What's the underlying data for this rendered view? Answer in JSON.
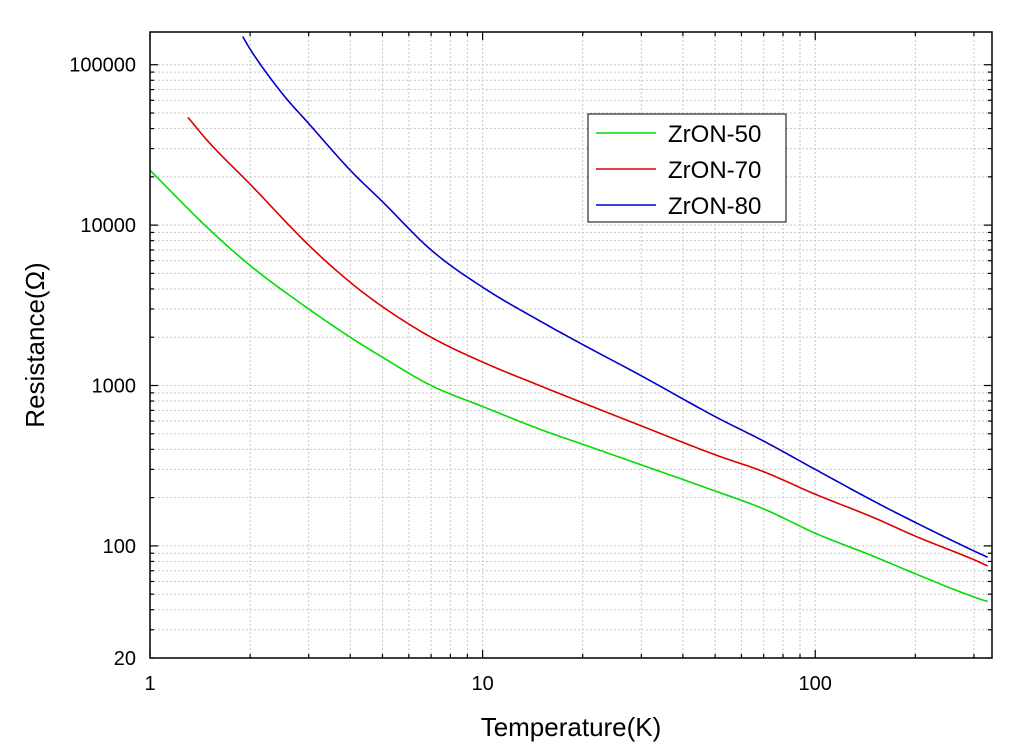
{
  "chart_data": {
    "type": "line",
    "title": "",
    "xlabel": "Temperature(K)",
    "ylabel": "Resistance(Ω)",
    "xscale": "log",
    "yscale": "log",
    "xlim": [
      1,
      340
    ],
    "ylim": [
      20,
      160000
    ],
    "xticks": [
      {
        "value": 1,
        "label": "1"
      },
      {
        "value": 10,
        "label": "10"
      },
      {
        "value": 100,
        "label": "100"
      }
    ],
    "yticks": [
      {
        "value": 20,
        "label": "20"
      },
      {
        "value": 100,
        "label": "100"
      },
      {
        "value": 1000,
        "label": "1000"
      },
      {
        "value": 10000,
        "label": "10000"
      },
      {
        "value": 100000,
        "label": "100000"
      }
    ],
    "grid": true,
    "legend_position": "top-right",
    "series": [
      {
        "name": "ZrON-50",
        "color": "#00dd00",
        "x": [
          1,
          1.5,
          2,
          3,
          4,
          5,
          7,
          10,
          15,
          20,
          30,
          50,
          70,
          100,
          150,
          200,
          300,
          330
        ],
        "y": [
          22000,
          9500,
          5600,
          3000,
          2000,
          1500,
          1000,
          740,
          530,
          430,
          320,
          220,
          170,
          120,
          86,
          67,
          48,
          45
        ]
      },
      {
        "name": "ZrON-70",
        "color": "#dd0000",
        "x": [
          1.3,
          1.5,
          2,
          3,
          4,
          5,
          7,
          10,
          15,
          20,
          30,
          50,
          70,
          100,
          150,
          200,
          300,
          330
        ],
        "y": [
          47000,
          33000,
          18000,
          7500,
          4400,
          3100,
          2000,
          1400,
          990,
          780,
          560,
          370,
          290,
          210,
          150,
          115,
          82,
          75
        ]
      },
      {
        "name": "ZrON-80",
        "color": "#0000cc",
        "x": [
          1.9,
          2,
          2.5,
          3,
          4,
          5,
          7,
          10,
          15,
          20,
          30,
          50,
          70,
          100,
          150,
          200,
          300,
          330
        ],
        "y": [
          150000,
          125000,
          66000,
          43000,
          22000,
          14000,
          7000,
          4100,
          2500,
          1800,
          1150,
          640,
          450,
          300,
          190,
          140,
          93,
          85
        ]
      }
    ]
  }
}
